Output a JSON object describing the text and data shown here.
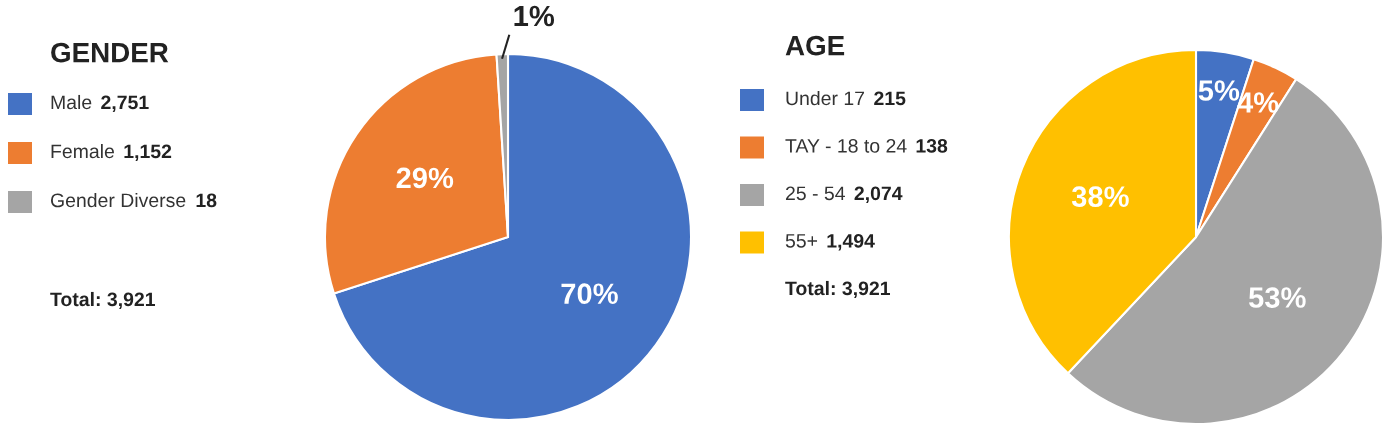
{
  "chart_data": [
    {
      "type": "pie",
      "title": "GENDER",
      "categories": [
        "Male 2,751",
        "Female 1,152",
        "Gender Diverse 18"
      ],
      "values": [
        70,
        29,
        1
      ],
      "colors": [
        "#4472c4",
        "#ed7d31",
        "#a5a5a5"
      ],
      "value_labels": [
        "70%",
        "29%",
        "1%"
      ],
      "legend": "left",
      "annotations": [
        "Total: 3,921"
      ]
    },
    {
      "type": "pie",
      "title": "AGE",
      "categories": [
        "Under 17 215",
        "TAY - 18 to 24 138",
        "25 - 54 2,074",
        "55+ 1,494"
      ],
      "values": [
        5,
        4,
        53,
        38
      ],
      "colors": [
        "#4472c4",
        "#ed7d31",
        "#a5a5a5",
        "#ffc000"
      ],
      "value_labels": [
        "5%",
        "4%",
        "53%",
        "38%"
      ],
      "legend": "left",
      "annotations": [
        "Total: 3,921"
      ]
    }
  ]
}
